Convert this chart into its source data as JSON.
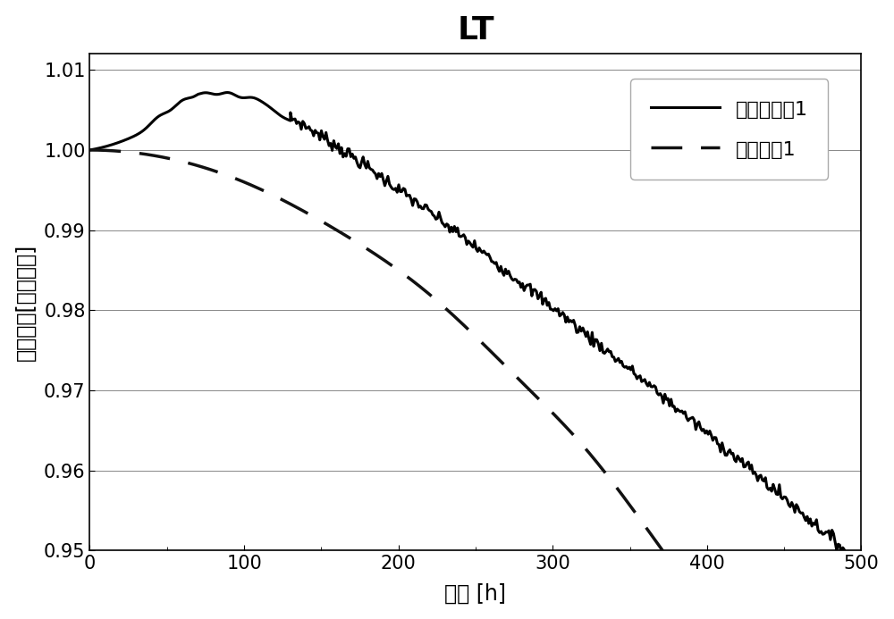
{
  "title": "LT",
  "xlabel": "时间 [h]",
  "ylabel": "相对亮度[任意单位]",
  "xlim": [
    0,
    500
  ],
  "ylim": [
    0.95,
    1.012
  ],
  "yticks": [
    0.95,
    0.96,
    0.97,
    0.98,
    0.99,
    1.0,
    1.01
  ],
  "xticks": [
    0,
    100,
    200,
    300,
    400,
    500
  ],
  "legend1": "器件实施例1",
  "legend2": "比较器件1",
  "line1_color": "#000000",
  "line2_color": "#111111",
  "bg_color": "#ffffff",
  "plot_bg": "#ffffff",
  "title_fontsize": 26,
  "label_fontsize": 17,
  "tick_fontsize": 15,
  "legend_fontsize": 16
}
